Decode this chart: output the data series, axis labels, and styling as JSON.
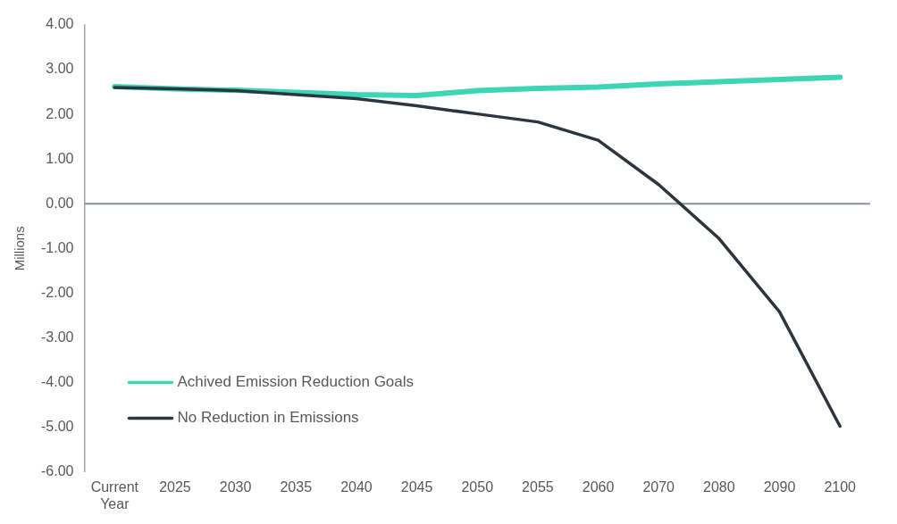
{
  "chart_data": {
    "type": "line",
    "ylabel": "Millions",
    "categories": [
      "Current Year",
      "2025",
      "2030",
      "2035",
      "2040",
      "2045",
      "2050",
      "2055",
      "2060",
      "2070",
      "2080",
      "2090",
      "2100"
    ],
    "series": [
      {
        "name": "Achived Emission Reduction Goals",
        "color": "#3dd6b5",
        "values": [
          2.62,
          2.57,
          2.54,
          2.49,
          2.44,
          2.42,
          2.53,
          2.58,
          2.61,
          2.68,
          2.73,
          2.78,
          2.83
        ]
      },
      {
        "name": "No Reduction in Emissions",
        "color": "#2d3640",
        "values": [
          2.6,
          2.57,
          2.53,
          2.44,
          2.35,
          2.19,
          2.01,
          1.83,
          1.42,
          0.43,
          -0.78,
          -2.42,
          -4.98
        ]
      }
    ],
    "ylim": [
      -6,
      4
    ],
    "yticks": [
      {
        "value": 4,
        "label": "4.00"
      },
      {
        "value": 3,
        "label": "3.00"
      },
      {
        "value": 2,
        "label": "2.00"
      },
      {
        "value": 1,
        "label": "1.00"
      },
      {
        "value": 0,
        "label": "0.00"
      },
      {
        "value": -1,
        "label": "-1.00"
      },
      {
        "value": -2,
        "label": "-2.00"
      },
      {
        "value": -3,
        "label": "-3.00"
      },
      {
        "value": -4,
        "label": "-4.00"
      },
      {
        "value": -5,
        "label": "-5.00"
      },
      {
        "value": -6,
        "label": "-6.00"
      }
    ],
    "ref_lines": [
      {
        "axis": "y",
        "value": 0,
        "color": "#8a8f99"
      }
    ],
    "grid": false,
    "legend": "bottom left",
    "marker": "none",
    "line_style": "solid"
  }
}
